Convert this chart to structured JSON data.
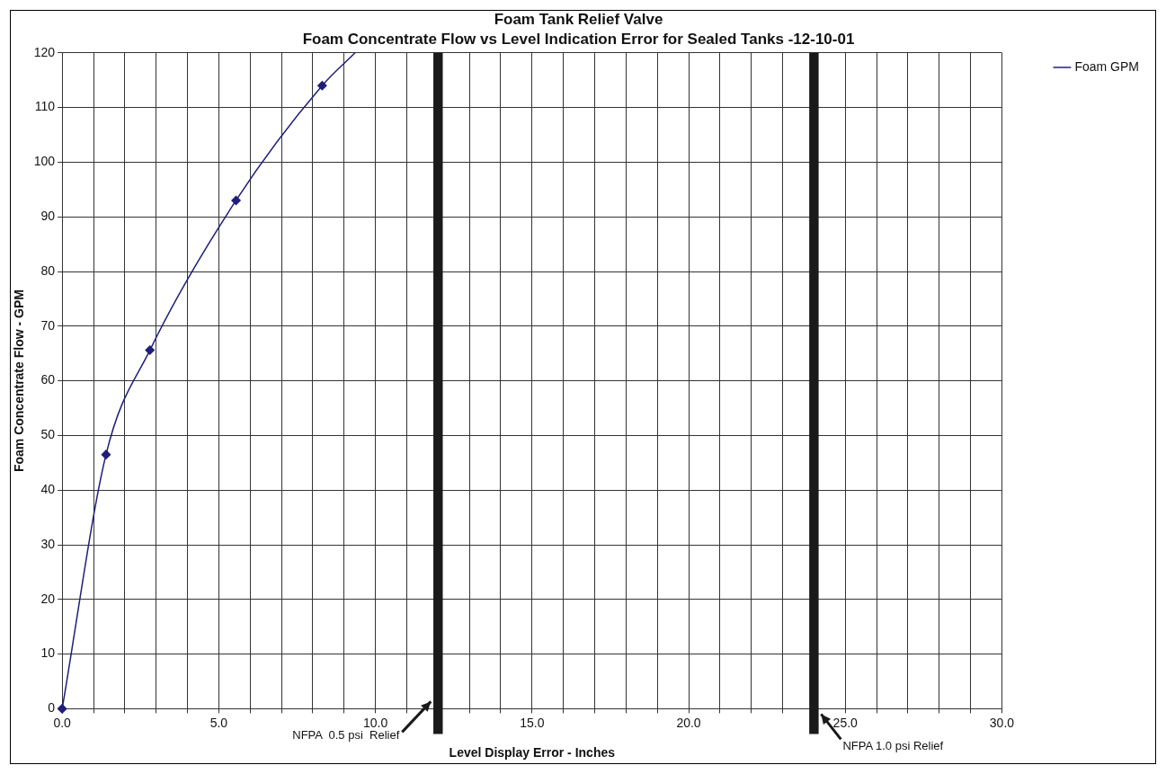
{
  "chart_data": {
    "type": "line",
    "title": "Foam Tank Relief Valve",
    "subtitle": "Foam Concentrate Flow vs Level Indication Error for Sealed Tanks -12-10-01",
    "xlabel": "Level Display Error - Inches",
    "ylabel": "Foam Concentrate Flow - GPM",
    "series": [
      {
        "name": "Foam GPM",
        "color": "#1f1f7a",
        "x": [
          0,
          1.4,
          2.8,
          5.55,
          8.3,
          9.35
        ],
        "values": [
          0,
          46.5,
          65.6,
          93,
          114,
          120
        ]
      }
    ],
    "xlim": [
      0,
      30
    ],
    "xticks": [
      {
        "value": 0,
        "label": "0.0"
      },
      {
        "value": 1,
        "label": null
      },
      {
        "value": 2,
        "label": null
      },
      {
        "value": 3,
        "label": null
      },
      {
        "value": 4,
        "label": null
      },
      {
        "value": 5,
        "label": "5.0"
      },
      {
        "value": 6,
        "label": null
      },
      {
        "value": 7,
        "label": null
      },
      {
        "value": 8,
        "label": null
      },
      {
        "value": 9,
        "label": null
      },
      {
        "value": 10,
        "label": "10.0"
      },
      {
        "value": 11,
        "label": null
      },
      {
        "value": 12,
        "label": null
      },
      {
        "value": 13,
        "label": null
      },
      {
        "value": 14,
        "label": null
      },
      {
        "value": 15,
        "label": "15.0"
      },
      {
        "value": 16,
        "label": null
      },
      {
        "value": 17,
        "label": null
      },
      {
        "value": 18,
        "label": null
      },
      {
        "value": 19,
        "label": null
      },
      {
        "value": 20,
        "label": "20.0"
      },
      {
        "value": 21,
        "label": null
      },
      {
        "value": 22,
        "label": null
      },
      {
        "value": 23,
        "label": null
      },
      {
        "value": 24,
        "label": null
      },
      {
        "value": 25,
        "label": "25.0"
      },
      {
        "value": 26,
        "label": null
      },
      {
        "value": 27,
        "label": null
      },
      {
        "value": 28,
        "label": null
      },
      {
        "value": 29,
        "label": null
      },
      {
        "value": 30,
        "label": "30.0"
      }
    ],
    "ylim": [
      0,
      120
    ],
    "yticks": [
      0,
      10,
      20,
      30,
      40,
      50,
      60,
      70,
      80,
      90,
      100,
      110,
      120
    ],
    "bands": [
      {
        "axis": "x",
        "from": 11.85,
        "to": 12.15,
        "label": "NFPA  0.5 psi  Relief",
        "color": "#1a1a1a"
      },
      {
        "axis": "x",
        "from": 23.85,
        "to": 24.15,
        "label": "NFPA 1.0 psi Relief",
        "color": "#1a1a1a"
      }
    ],
    "grid": true,
    "legend": "right",
    "marker": "diamond",
    "line_style": "solid"
  }
}
